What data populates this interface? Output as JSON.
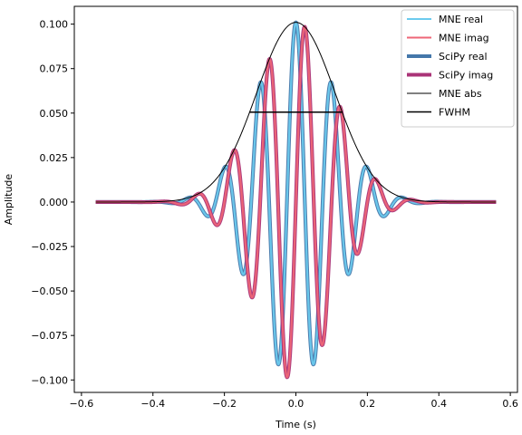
{
  "chart_data": {
    "type": "line",
    "title": "",
    "xlabel": "Time (s)",
    "ylabel": "Amplitude",
    "xlim": [
      -0.62,
      0.62
    ],
    "ylim": [
      -0.107,
      0.11
    ],
    "x_ticks": [
      -0.6,
      -0.4,
      -0.2,
      0.0,
      0.2,
      0.4,
      0.6
    ],
    "x_tick_labels": [
      "−0.6",
      "−0.4",
      "−0.2",
      "0.0",
      "0.2",
      "0.4",
      "0.6"
    ],
    "y_ticks": [
      -0.1,
      -0.075,
      -0.05,
      -0.025,
      0.0,
      0.025,
      0.05,
      0.075,
      0.1
    ],
    "y_tick_labels": [
      "−0.100",
      "−0.075",
      "−0.050",
      "−0.025",
      "0.000",
      "0.025",
      "0.050",
      "0.075",
      "0.100"
    ],
    "grid": false,
    "legend_position": "top-right",
    "wavelet": {
      "t_start": -0.56,
      "t_end": 0.56,
      "peak_amplitude": 0.101,
      "frequency_hz": 10,
      "gaussian_sigma_s": 0.11
    },
    "series": [
      {
        "name": "MNE real",
        "color": "#6ccbee",
        "style": "thin",
        "component": "real"
      },
      {
        "name": "MNE imag",
        "color": "#ee6677",
        "style": "thin",
        "component": "imag"
      },
      {
        "name": "SciPy real",
        "color": "#4477aa",
        "style": "thick",
        "component": "real"
      },
      {
        "name": "SciPy imag",
        "color": "#aa3377",
        "style": "thick",
        "component": "imag"
      },
      {
        "name": "MNE abs",
        "color": "#000000",
        "style": "envelope",
        "component": "abs"
      },
      {
        "name": "FWHM",
        "color": "#000000",
        "style": "segment",
        "x": [
          -0.1295,
          0.1295
        ],
        "y": 0.0505
      }
    ]
  }
}
